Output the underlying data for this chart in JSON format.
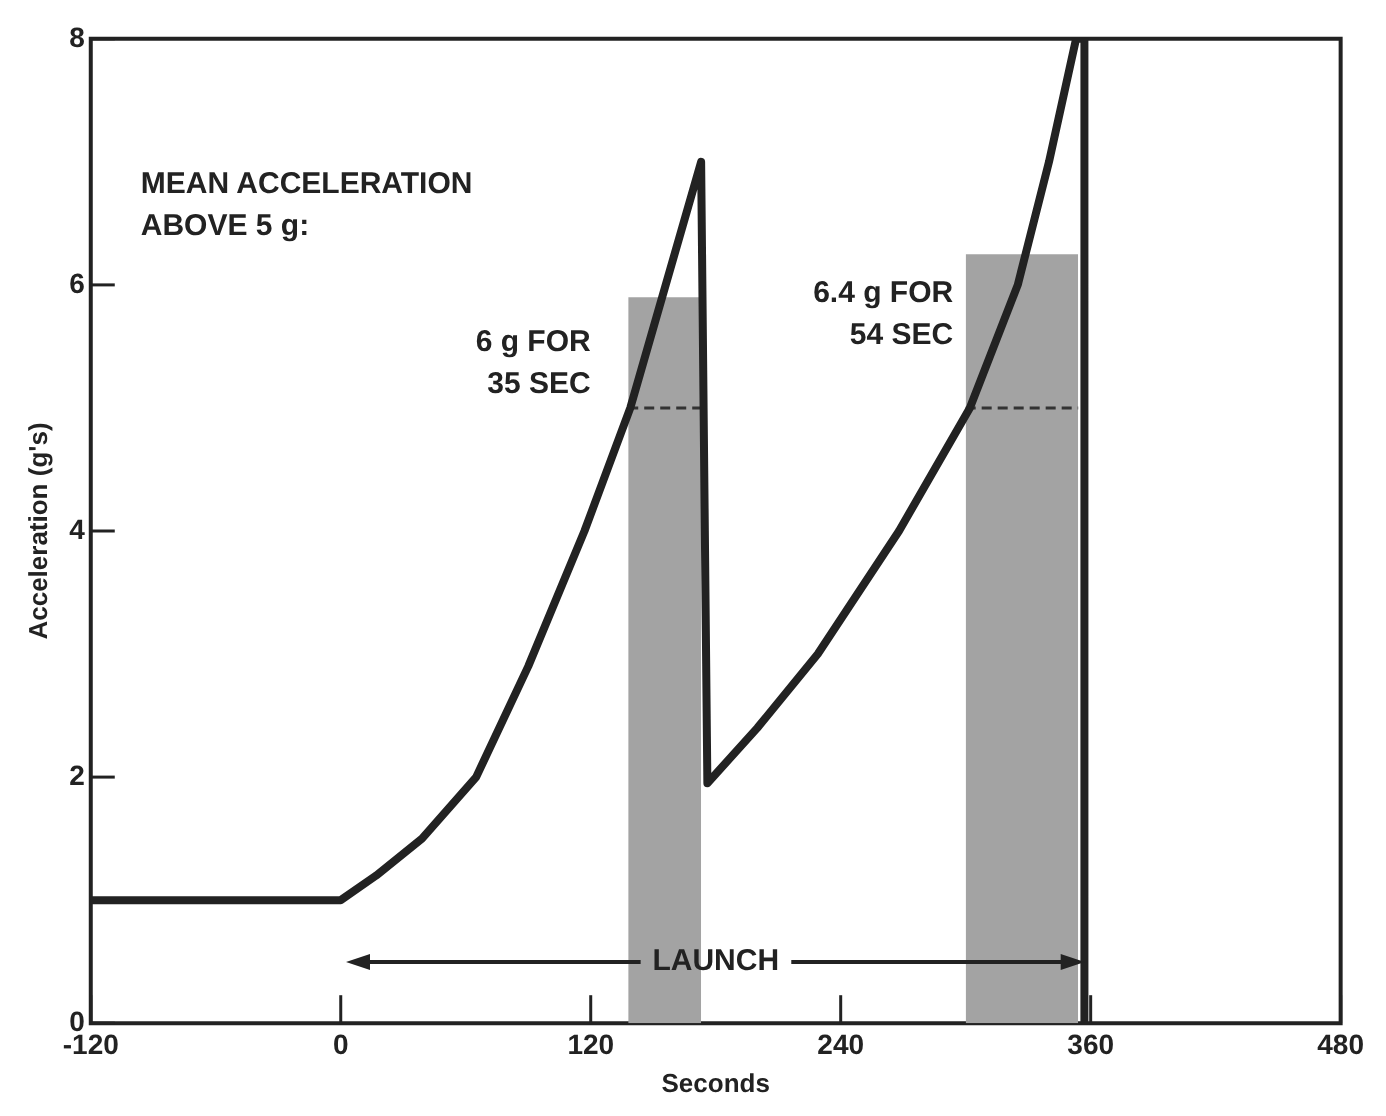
{
  "chart_data": {
    "type": "line",
    "xlabel": "Seconds",
    "ylabel": "Acceleration (g's)",
    "xlim": [
      -120,
      480
    ],
    "xticks": [
      -120,
      0,
      120,
      240,
      360,
      480
    ],
    "ylim": [
      0,
      8
    ],
    "yticks": [
      0,
      2,
      4,
      6,
      8
    ],
    "grid": false,
    "series": [
      {
        "type": "histogram",
        "color": "#a3a3a3",
        "bins": [
          138,
          173,
          300,
          354
        ],
        "values": [
          5.9,
          null,
          6.25
        ]
      },
      {
        "color": "#222222",
        "x": [
          -120,
          0,
          17,
          39,
          65,
          90,
          117,
          139,
          156,
          173,
          176,
          200,
          229,
          268,
          302,
          325,
          340,
          353,
          357,
          357
        ],
        "values": [
          1,
          1,
          1.2,
          1.5,
          2,
          2.9,
          4,
          5,
          6,
          7,
          1.95,
          2.4,
          3,
          4,
          5,
          6,
          7,
          8,
          8,
          0
        ]
      },
      {
        "type": "line",
        "color": "#333333",
        "line_style": "dashed",
        "x": [
          138,
          173
        ],
        "values": [
          5,
          5
        ]
      },
      {
        "type": "line",
        "color": "#333333",
        "line_style": "dashed",
        "x": [
          300,
          354
        ],
        "values": [
          5,
          5
        ]
      }
    ],
    "annotations": [
      "MEAN ACCELERATION ABOVE 5 g:",
      "6 g FOR 35 SEC",
      "6.4 g FOR 54 SEC",
      {
        "text": "LAUNCH",
        "x": 357,
        "y": 0.5
      }
    ]
  }
}
